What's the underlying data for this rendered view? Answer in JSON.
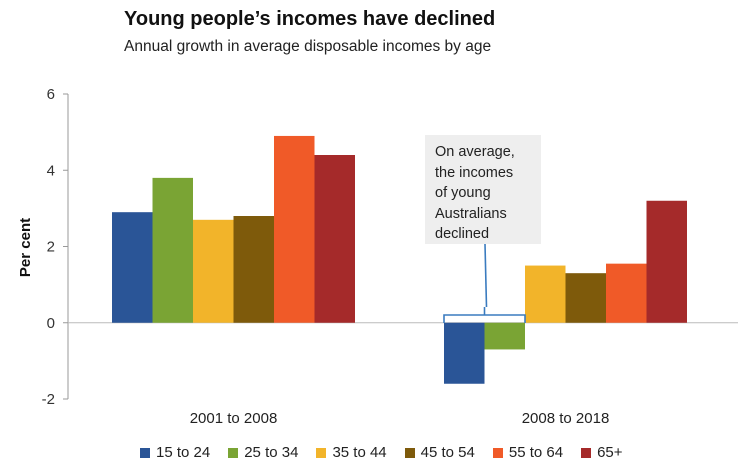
{
  "title": "Young people’s incomes have declined",
  "subtitle": "Annual growth in average disposable incomes by age",
  "annotation": {
    "lines": [
      "On average,",
      "the incomes",
      "of young",
      "Australians",
      "declined"
    ]
  },
  "chart_data": {
    "type": "bar",
    "ylabel": "Per cent",
    "xlabel": "",
    "ylim": [
      -2,
      6
    ],
    "yticks": [
      "6",
      "4",
      "2",
      "0",
      "-2"
    ],
    "yticks_values": [
      6,
      4,
      2,
      0,
      -2
    ],
    "grid": false,
    "legend_position": "bottom",
    "categories": [
      "2001 to 2008",
      "2008 to 2018"
    ],
    "series": [
      {
        "name": "15 to 24",
        "color": "#2a5597",
        "values": [
          2.9,
          -1.6
        ]
      },
      {
        "name": "25 to 34",
        "color": "#7aa434",
        "values": [
          3.8,
          -0.7
        ]
      },
      {
        "name": "35 to 44",
        "color": "#f2b42a",
        "values": [
          2.7,
          1.5
        ]
      },
      {
        "name": "45 to 54",
        "color": "#7e5a0b",
        "values": [
          2.8,
          1.3
        ]
      },
      {
        "name": "55 to 64",
        "color": "#f05a28",
        "values": [
          4.9,
          1.55
        ]
      },
      {
        "name": "65+",
        "color": "#a52a2a",
        "values": [
          4.4,
          3.2
        ]
      }
    ]
  }
}
